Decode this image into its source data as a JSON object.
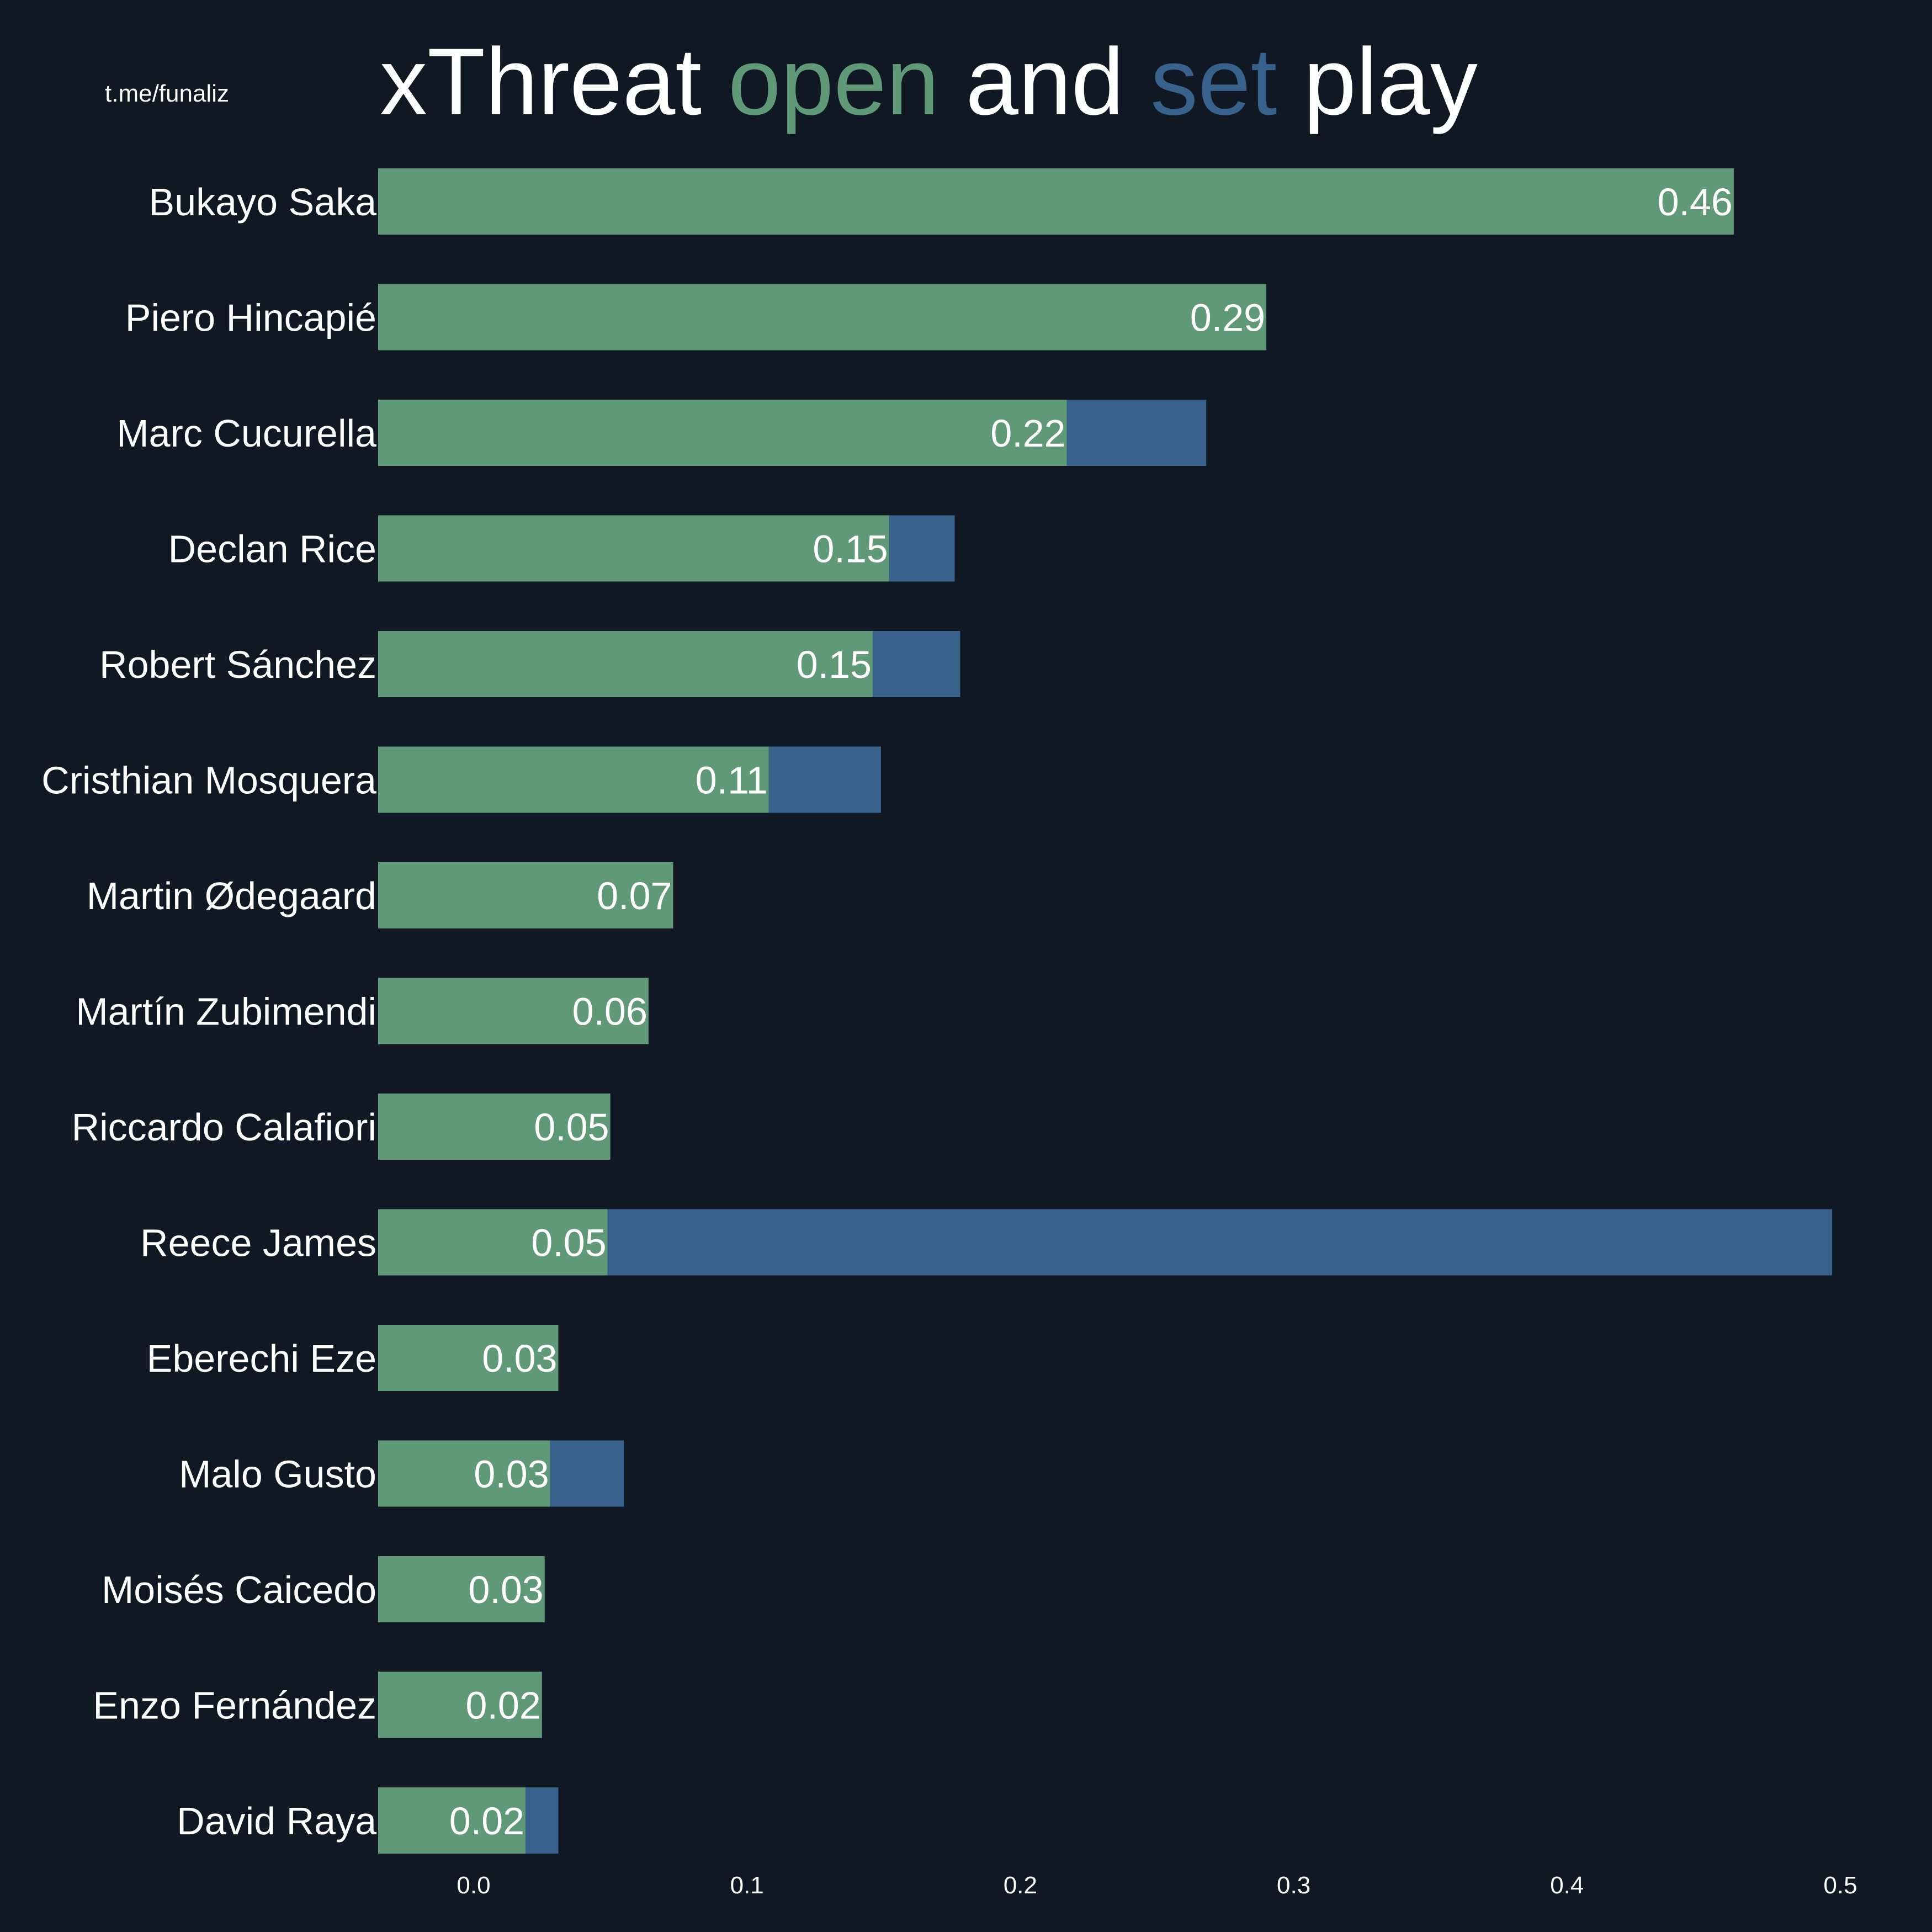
{
  "watermark": "t.me/funaliz",
  "title": {
    "part1": "xThreat ",
    "open_word": "open",
    "part2": " and ",
    "set_word": "set",
    "part3": " play"
  },
  "colors": {
    "background": "#0f1823",
    "open": "#5f9977",
    "set": "#38628c",
    "text": "#ffffff"
  },
  "chart_data": {
    "type": "bar",
    "orientation": "horizontal",
    "stacked": true,
    "title": "xThreat open and set play",
    "xlim": [
      -0.035,
      0.5
    ],
    "xticks": [
      "0.0",
      "0.1",
      "0.2",
      "0.3",
      "0.4",
      "0.5"
    ],
    "xtick_values": [
      0.0,
      0.1,
      0.2,
      0.3,
      0.4,
      0.5
    ],
    "grid": false,
    "legend": "none",
    "categories": [
      "Bukayo Saka",
      "Piero Hincapié",
      "Marc Cucurella",
      "Declan Rice",
      "Robert Sánchez",
      "Cristhian Mosquera",
      "Martin Ødegaard",
      "Martín Zubimendi",
      "Riccardo Calafiori",
      "Reece James",
      "Eberechi Eze",
      "Malo Gusto",
      "Moisés Caicedo",
      "Enzo Fernández",
      "David Raya"
    ],
    "series": [
      {
        "key": "open",
        "values": [
          0.461,
          0.29,
          0.217,
          0.152,
          0.146,
          0.108,
          0.073,
          0.064,
          0.05,
          0.049,
          0.031,
          0.028,
          0.026,
          0.025,
          0.019
        ],
        "labels": [
          "0.46",
          "0.29",
          "0.22",
          "0.15",
          "0.15",
          "0.11",
          "0.07",
          "0.06",
          "0.05",
          "0.05",
          "0.03",
          "0.03",
          "0.03",
          "0.02",
          "0.02"
        ]
      },
      {
        "key": "set",
        "values": [
          0,
          0,
          0.051,
          0.024,
          0.032,
          0.041,
          0,
          0,
          0,
          0.448,
          0,
          0.027,
          0,
          0,
          0.012
        ]
      }
    ]
  }
}
